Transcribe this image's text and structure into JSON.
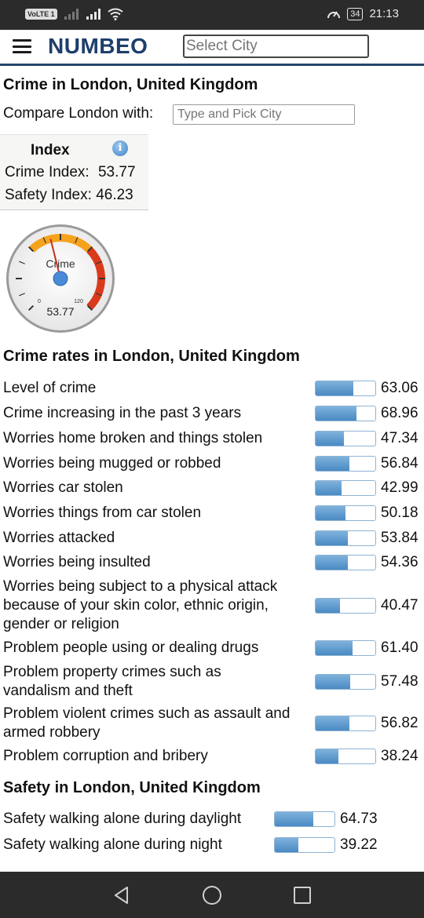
{
  "status_bar": {
    "time": "21:13",
    "battery": "34",
    "volte": "VoLTE 1"
  },
  "header": {
    "logo": "NUMBEO",
    "search_placeholder": "Select City"
  },
  "page": {
    "title": "Crime in London, United Kingdom",
    "compare_label": "Compare London with:",
    "compare_placeholder": "Type and Pick City"
  },
  "index": {
    "heading": "Index",
    "crime_label": "Crime Index:",
    "crime_value": "53.77",
    "safety_label": "Safety Index:",
    "safety_value": "46.23"
  },
  "gauge": {
    "label": "Crime",
    "value": 53.77,
    "value_text": "53.77",
    "min_label": "0",
    "max_label": "120"
  },
  "crime_rates": {
    "title": "Crime rates in London, United Kingdom",
    "rows": [
      {
        "label": "Level of crime",
        "value": "63.06",
        "fraction": 0.6306
      },
      {
        "label": "Crime increasing in the past 3 years",
        "value": "68.96",
        "fraction": 0.6896
      },
      {
        "label": "Worries home broken and things stolen",
        "value": "47.34",
        "fraction": 0.4734
      },
      {
        "label": "Worries being mugged or robbed",
        "value": "56.84",
        "fraction": 0.5684
      },
      {
        "label": "Worries car stolen",
        "value": "42.99",
        "fraction": 0.4299
      },
      {
        "label": "Worries things from car stolen",
        "value": "50.18",
        "fraction": 0.5018
      },
      {
        "label": "Worries attacked",
        "value": "53.84",
        "fraction": 0.5384
      },
      {
        "label": "Worries being insulted",
        "value": "54.36",
        "fraction": 0.5436
      },
      {
        "label": "Worries being subject to a physical attack because of your skin color, ethnic origin, gender or religion",
        "value": "40.47",
        "fraction": 0.4047
      },
      {
        "label": "Problem people using or dealing drugs",
        "value": "61.40",
        "fraction": 0.614
      },
      {
        "label": "Problem property crimes such as vandalism and theft",
        "value": "57.48",
        "fraction": 0.5748
      },
      {
        "label": "Problem violent crimes such as assault and armed robbery",
        "value": "56.82",
        "fraction": 0.5682
      },
      {
        "label": "Problem corruption and bribery",
        "value": "38.24",
        "fraction": 0.3824
      }
    ]
  },
  "safety": {
    "title": "Safety in London, United Kingdom",
    "rows": [
      {
        "label": "Safety walking alone during daylight",
        "value": "64.73",
        "fraction": 0.6473
      },
      {
        "label": "Safety walking alone during night",
        "value": "39.22",
        "fraction": 0.3922
      }
    ]
  },
  "icons": {
    "menu": "hamburger-icon",
    "info": "info-icon",
    "back": "back-triangle-icon",
    "home": "home-circle-icon",
    "recents": "recents-square-icon"
  },
  "colors": {
    "brand": "#1d3f6c",
    "bar_fill": "#4a8ac4",
    "gauge_red": "#d93a1c",
    "gauge_orange": "#f5a21c"
  }
}
